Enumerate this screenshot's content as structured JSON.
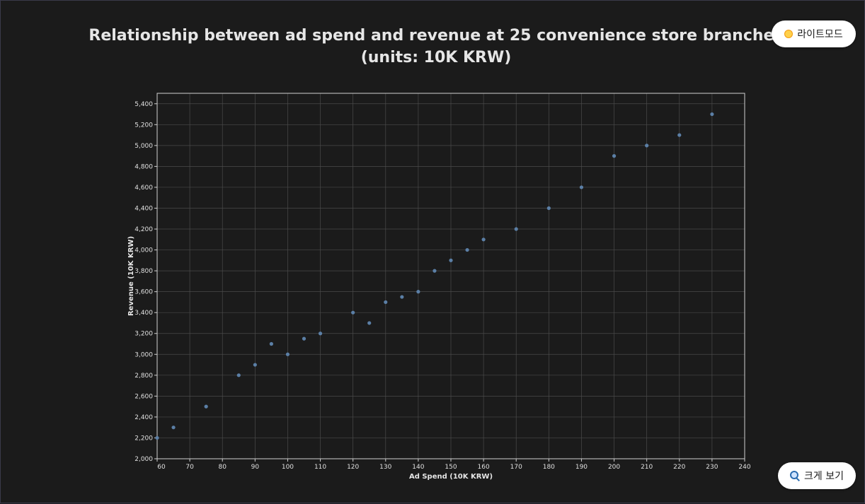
{
  "title_lines": [
    "Relationship between ad spend and revenue at 25 convenience store branches",
    "(units: 10K KRW)"
  ],
  "controls": {
    "light_mode_label": "라이트모드",
    "light_mode_icon": "sun-icon",
    "zoom_label": "크게 보기",
    "zoom_icon": "magnifier-icon"
  },
  "colors": {
    "background": "#1b1b1b",
    "grid": "#4a4a4a",
    "axis": "#d0d0d0",
    "point": "#5b7fa6"
  },
  "chart_data": {
    "type": "scatter",
    "title": "Relationship between ad spend and revenue at 25 convenience store branches (units: 10K KRW)",
    "xlabel": "Ad Spend (10K KRW)",
    "ylabel": "Revenue (10K KRW)",
    "xlim": [
      60,
      240
    ],
    "ylim": [
      2000,
      5500
    ],
    "xticks": [
      60,
      70,
      80,
      90,
      100,
      110,
      120,
      130,
      140,
      150,
      160,
      170,
      180,
      190,
      200,
      210,
      220,
      230,
      240
    ],
    "yticks": [
      2000,
      2200,
      2400,
      2600,
      2800,
      3000,
      3200,
      3400,
      3600,
      3800,
      4000,
      4200,
      4400,
      4600,
      4800,
      5000,
      5200,
      5400
    ],
    "xtick_labels": [
      "60",
      "70",
      "80",
      "90",
      "100",
      "110",
      "120",
      "130",
      "140",
      "150",
      "160",
      "170",
      "180",
      "190",
      "200",
      "210",
      "220",
      "230",
      "240"
    ],
    "ytick_labels": [
      "2,000",
      "2,200",
      "2,400",
      "2,600",
      "2,800",
      "3,000",
      "3,200",
      "3,400",
      "3,600",
      "3,800",
      "4,000",
      "4,200",
      "4,400",
      "4,600",
      "4,800",
      "5,000",
      "5,200",
      "5,400"
    ],
    "grid": true,
    "legend": false,
    "points": [
      {
        "x": 60,
        "y": 2200
      },
      {
        "x": 65,
        "y": 2300
      },
      {
        "x": 75,
        "y": 2500
      },
      {
        "x": 85,
        "y": 2800
      },
      {
        "x": 90,
        "y": 2900
      },
      {
        "x": 95,
        "y": 3100
      },
      {
        "x": 100,
        "y": 3000
      },
      {
        "x": 105,
        "y": 3150
      },
      {
        "x": 110,
        "y": 3200
      },
      {
        "x": 120,
        "y": 3400
      },
      {
        "x": 125,
        "y": 3300
      },
      {
        "x": 130,
        "y": 3500
      },
      {
        "x": 135,
        "y": 3550
      },
      {
        "x": 140,
        "y": 3600
      },
      {
        "x": 145,
        "y": 3800
      },
      {
        "x": 150,
        "y": 3900
      },
      {
        "x": 155,
        "y": 4000
      },
      {
        "x": 160,
        "y": 4100
      },
      {
        "x": 170,
        "y": 4200
      },
      {
        "x": 180,
        "y": 4400
      },
      {
        "x": 190,
        "y": 4600
      },
      {
        "x": 200,
        "y": 4900
      },
      {
        "x": 210,
        "y": 5000
      },
      {
        "x": 220,
        "y": 5100
      },
      {
        "x": 230,
        "y": 5300
      }
    ]
  }
}
